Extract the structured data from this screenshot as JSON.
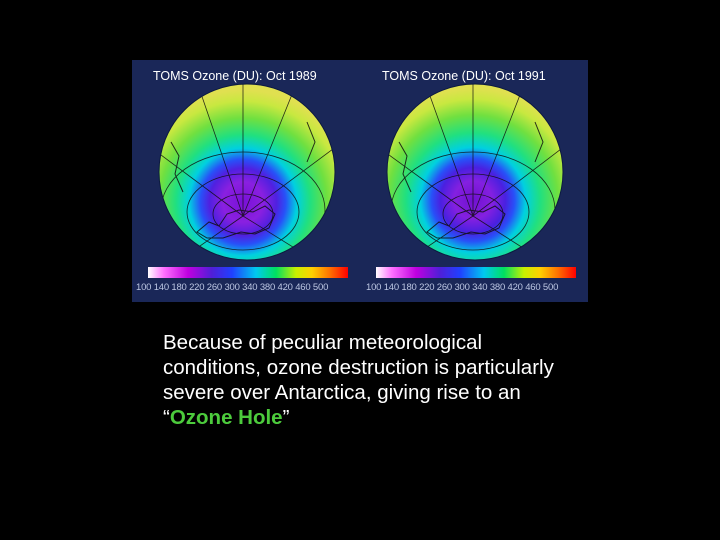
{
  "figure": {
    "maps": [
      {
        "title": "TOMS Ozone (DU): Oct 1989"
      },
      {
        "title": "TOMS Ozone (DU): Oct 1991"
      }
    ],
    "colorbar_ticks": "100 140 180 220 260 300 340 380 420 460 500",
    "colors": {
      "panel_bg": "#1a2758",
      "hole": "#7a10d8",
      "ring": "#3838f0",
      "mid": "#00d0e0",
      "high": "#20e070",
      "rim": "#d0e040"
    }
  },
  "caption": {
    "text_before": "Because of peculiar meteorological conditions, ozone destruction is particularly severe over Antarctica, giving rise to an “",
    "highlight": "Ozone Hole",
    "text_after": "”",
    "highlight_color": "#4ccb3c"
  }
}
